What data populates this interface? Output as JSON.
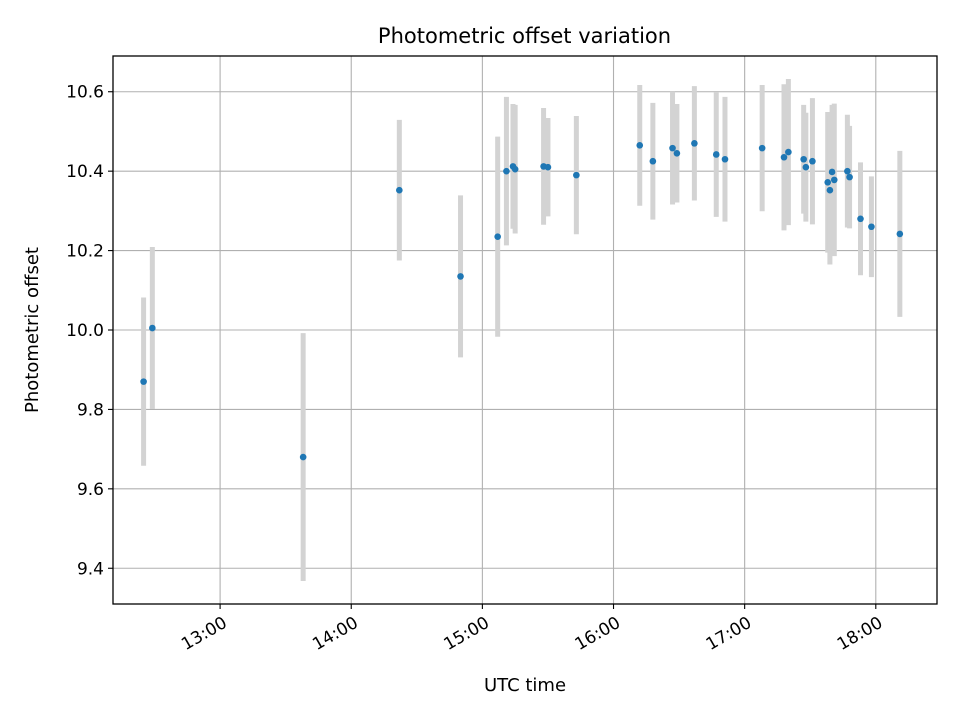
{
  "chart_data": {
    "type": "scatter",
    "title": "Photometric offset variation",
    "xlabel": "UTC time",
    "ylabel": "Photometric offset",
    "x_unit": "UTC time of day (HH:MM)",
    "xlim": [
      "12:11",
      "18:28"
    ],
    "ylim": [
      9.31,
      10.69
    ],
    "x_ticks": [
      "13:00",
      "14:00",
      "15:00",
      "16:00",
      "17:00",
      "18:00"
    ],
    "y_ticks": [
      "9.4",
      "9.6",
      "9.8",
      "10.0",
      "10.2",
      "10.4",
      "10.6"
    ],
    "grid": true,
    "marker_color": "#1f77b4",
    "errorbar_color": "#d3d3d3",
    "series": [
      {
        "points": [
          {
            "x": "12:25",
            "y": 9.87,
            "err": 0.212
          },
          {
            "x": "12:29",
            "y": 10.005,
            "err": 0.204
          },
          {
            "x": "13:38",
            "y": 9.68,
            "err": 0.312
          },
          {
            "x": "14:22",
            "y": 10.352,
            "err": 0.177
          },
          {
            "x": "14:50",
            "y": 10.135,
            "err": 0.204
          },
          {
            "x": "15:07",
            "y": 10.235,
            "err": 0.252
          },
          {
            "x": "15:11",
            "y": 10.4,
            "err": 0.187
          },
          {
            "x": "15:14",
            "y": 10.412,
            "err": 0.157
          },
          {
            "x": "15:15",
            "y": 10.405,
            "err": 0.162
          },
          {
            "x": "15:28",
            "y": 10.412,
            "err": 0.147
          },
          {
            "x": "15:30",
            "y": 10.41,
            "err": 0.124
          },
          {
            "x": "15:43",
            "y": 10.39,
            "err": 0.149
          },
          {
            "x": "16:12",
            "y": 10.465,
            "err": 0.152
          },
          {
            "x": "16:18",
            "y": 10.425,
            "err": 0.147
          },
          {
            "x": "16:27",
            "y": 10.458,
            "err": 0.142
          },
          {
            "x": "16:29",
            "y": 10.445,
            "err": 0.124
          },
          {
            "x": "16:37",
            "y": 10.47,
            "err": 0.144
          },
          {
            "x": "16:47",
            "y": 10.442,
            "err": 0.157
          },
          {
            "x": "16:51",
            "y": 10.43,
            "err": 0.157
          },
          {
            "x": "17:08",
            "y": 10.458,
            "err": 0.159
          },
          {
            "x": "17:18",
            "y": 10.435,
            "err": 0.184
          },
          {
            "x": "17:20",
            "y": 10.448,
            "err": 0.184
          },
          {
            "x": "17:27",
            "y": 10.43,
            "err": 0.137
          },
          {
            "x": "17:28",
            "y": 10.41,
            "err": 0.137
          },
          {
            "x": "17:31",
            "y": 10.425,
            "err": 0.159
          },
          {
            "x": "17:38",
            "y": 10.372,
            "err": 0.177
          },
          {
            "x": "17:39",
            "y": 10.352,
            "err": 0.187
          },
          {
            "x": "17:40",
            "y": 10.398,
            "err": 0.169
          },
          {
            "x": "17:41",
            "y": 10.378,
            "err": 0.192
          },
          {
            "x": "17:47",
            "y": 10.4,
            "err": 0.142
          },
          {
            "x": "17:48",
            "y": 10.385,
            "err": 0.129
          },
          {
            "x": "17:53",
            "y": 10.28,
            "err": 0.142
          },
          {
            "x": "17:58",
            "y": 10.26,
            "err": 0.127
          },
          {
            "x": "18:11",
            "y": 10.242,
            "err": 0.209
          }
        ]
      }
    ]
  }
}
